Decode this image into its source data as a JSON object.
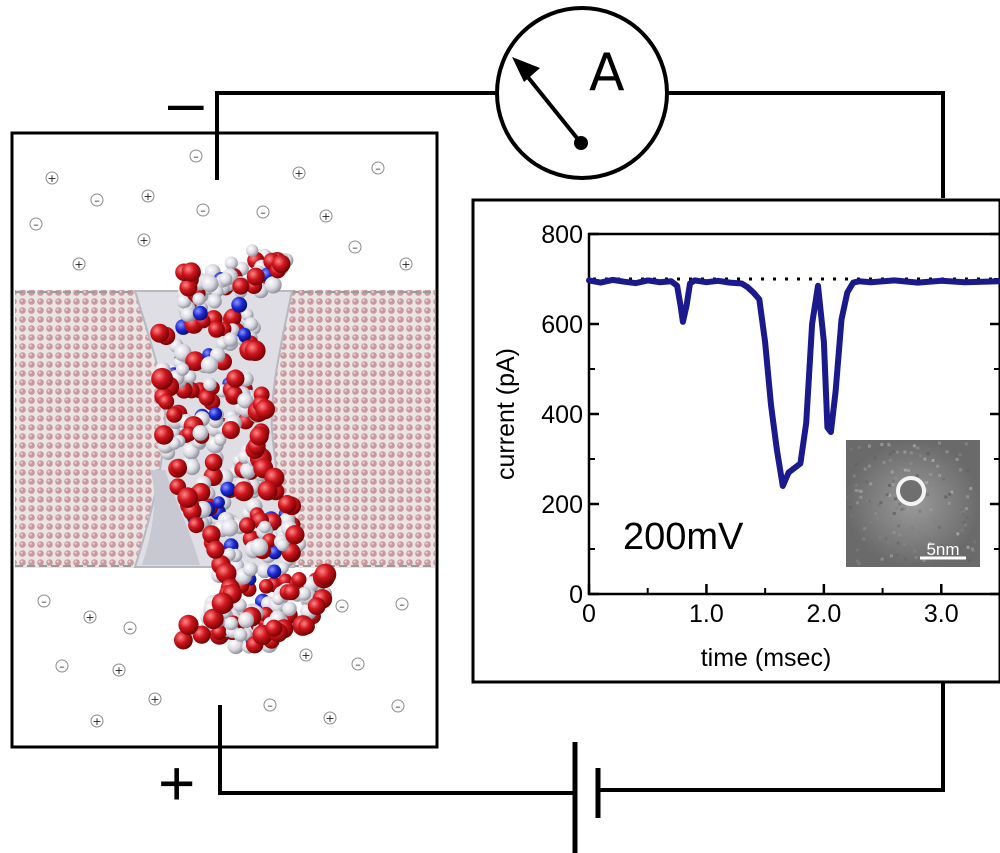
{
  "circuit": {
    "ammeter_label": "A",
    "negative_terminal": "–",
    "positive_terminal": "+",
    "wire_color": "#000000"
  },
  "simulation": {
    "ion_markers": [
      "+",
      "–"
    ],
    "membrane_color": "#c69a9e",
    "dna_colors": [
      "#c8102e",
      "#d8d8e0",
      "#1e2bd0"
    ],
    "water_color": "#ffffff"
  },
  "chart_data": {
    "type": "line",
    "x": [
      0.0,
      0.1,
      0.2,
      0.3,
      0.4,
      0.5,
      0.6,
      0.7,
      0.75,
      0.78,
      0.8,
      0.83,
      0.86,
      0.9,
      1.0,
      1.1,
      1.2,
      1.3,
      1.35,
      1.4,
      1.45,
      1.5,
      1.55,
      1.6,
      1.65,
      1.7,
      1.75,
      1.8,
      1.85,
      1.9,
      1.95,
      2.0,
      2.03,
      2.06,
      2.1,
      2.15,
      2.2,
      2.25,
      2.3,
      2.4,
      2.6,
      2.8,
      3.0,
      3.2,
      3.5
    ],
    "series": [
      {
        "values": [
          697,
          692,
          698,
          694,
          691,
          697,
          693,
          695,
          685,
          640,
          605,
          640,
          690,
          697,
          693,
          696,
          692,
          690,
          682,
          670,
          655,
          560,
          420,
          320,
          240,
          270,
          280,
          290,
          380,
          600,
          685,
          560,
          370,
          360,
          450,
          610,
          670,
          692,
          695,
          693,
          697,
          692,
          696,
          693,
          695
        ],
        "color": "#1a1a8c"
      }
    ],
    "reference_line": 700,
    "xlabel": "time (msec)",
    "ylabel": "current (pA)",
    "xlim": [
      0,
      3.5
    ],
    "ylim": [
      0,
      800
    ],
    "xticks": [
      "0",
      "1.0",
      "2.0",
      "3.0"
    ],
    "yticks": [
      "0",
      "200",
      "400",
      "600",
      "800"
    ],
    "annotation": "200mV",
    "inset": {
      "scale_label": "5nm"
    },
    "grid": false
  }
}
